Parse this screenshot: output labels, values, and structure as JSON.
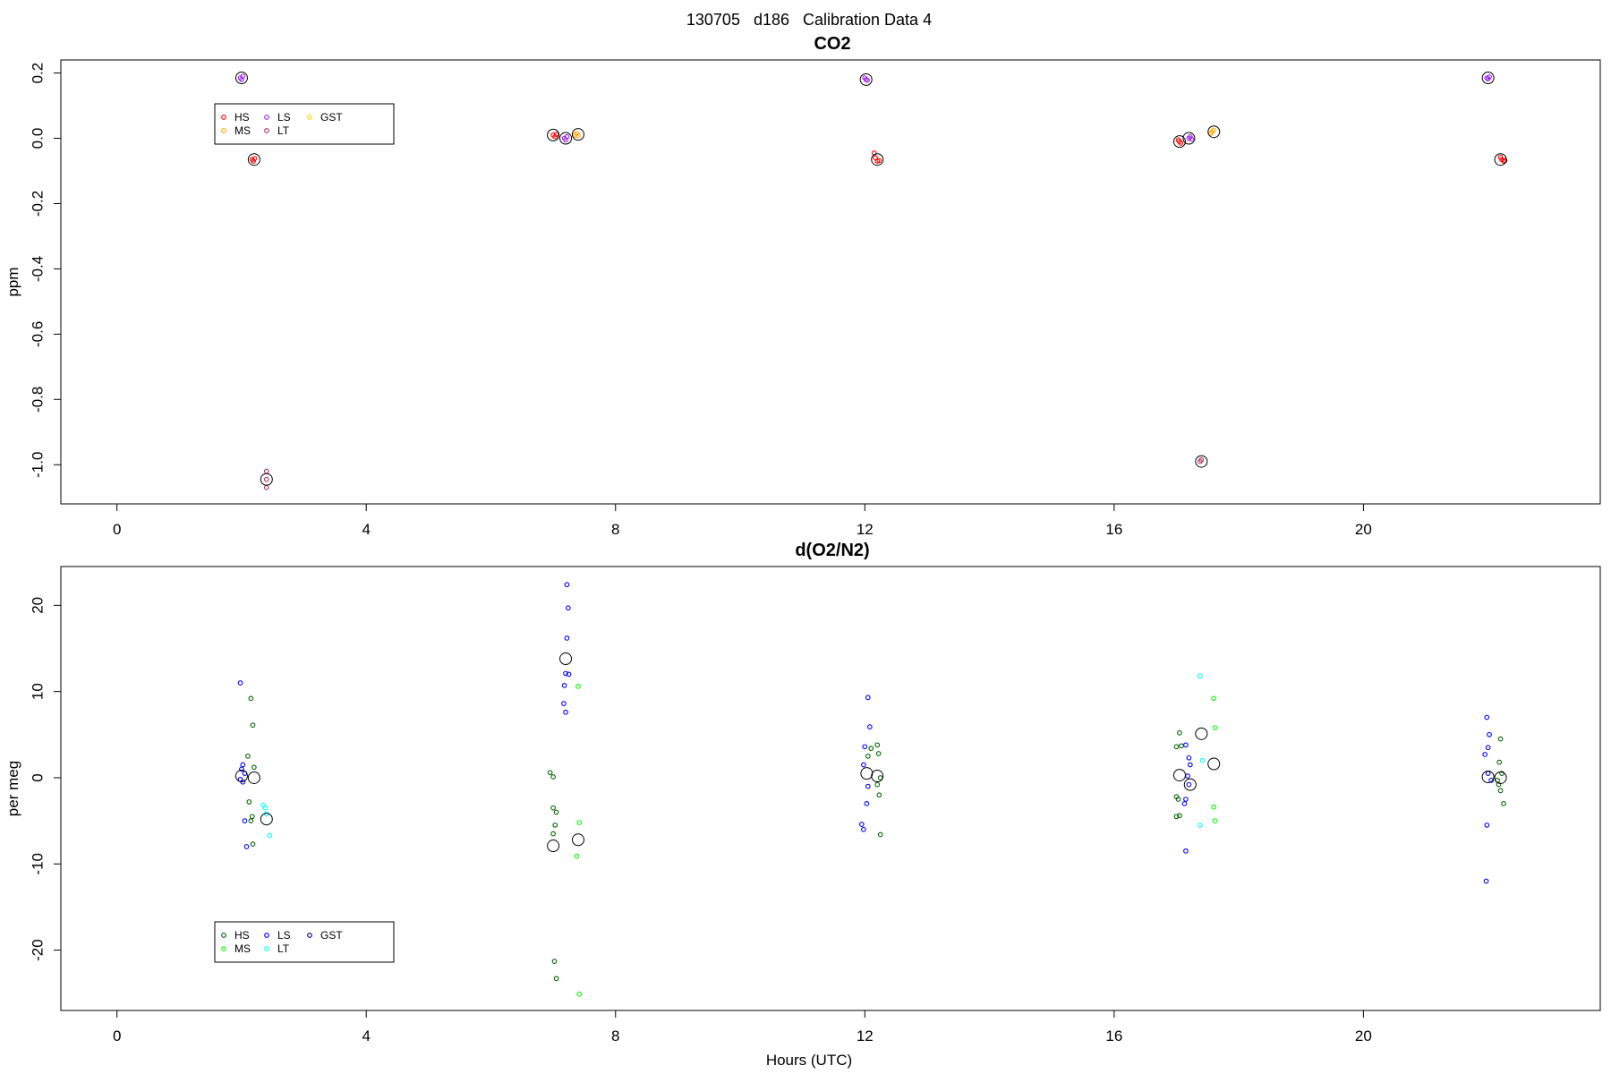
{
  "figure": {
    "title": "130705   d186   Calibration Data 4",
    "xlabel": "Hours (UTC)"
  },
  "chart_data": [
    {
      "type": "scatter",
      "title": "CO2",
      "xlabel": "",
      "ylabel": "ppm",
      "xlim": [
        -0.9,
        23.8
      ],
      "ylim": [
        -1.12,
        0.24
      ],
      "xticks": [
        0,
        4,
        8,
        12,
        16,
        20
      ],
      "yticks": [
        0.2,
        0.0,
        -0.2,
        -0.4,
        -0.6,
        -0.8,
        -1.0
      ],
      "ytick_labels": [
        "0.2",
        "0.0",
        "-0.2",
        "-0.4",
        "-0.6",
        "-0.8",
        "-1.0"
      ],
      "grid": false,
      "legend": {
        "placement": "top-left",
        "columns": [
          [
            "HS",
            "MS"
          ],
          [
            "LS",
            "LT"
          ],
          [
            "GST"
          ]
        ],
        "entries": [
          {
            "name": "HS",
            "color": "#ff0000",
            "col": 0,
            "row": 0
          },
          {
            "name": "MS",
            "color": "#ffa500",
            "col": 0,
            "row": 1
          },
          {
            "name": "LS",
            "color": "#a020f0",
            "col": 1,
            "row": 0
          },
          {
            "name": "LT",
            "color": "#b03060",
            "col": 1,
            "row": 1
          },
          {
            "name": "GST",
            "color": "#ffd700",
            "col": 2,
            "row": 0
          }
        ]
      },
      "series": [
        {
          "name": "HS",
          "color": "#ff0000",
          "points": [
            [
              2.17,
              -0.065
            ],
            [
              2.19,
              -0.07
            ],
            [
              2.21,
              -0.062
            ],
            [
              7.0,
              0.01
            ],
            [
              7.03,
              0.005
            ],
            [
              7.05,
              0.012
            ],
            [
              12.17,
              -0.06
            ],
            [
              12.2,
              -0.07
            ],
            [
              12.23,
              -0.068
            ],
            [
              12.15,
              -0.045
            ],
            [
              17.05,
              -0.01
            ],
            [
              17.07,
              -0.015
            ],
            [
              17.03,
              -0.005
            ],
            [
              22.22,
              -0.065
            ],
            [
              22.25,
              -0.07
            ],
            [
              22.27,
              -0.068
            ],
            [
              22.2,
              -0.058
            ]
          ]
        },
        {
          "name": "MS",
          "color": "#ffa500",
          "points": [
            [
              7.35,
              0.01
            ],
            [
              7.38,
              0.015
            ],
            [
              7.4,
              0.008
            ],
            [
              17.57,
              0.02
            ],
            [
              17.6,
              0.025
            ],
            [
              17.55,
              0.015
            ]
          ]
        },
        {
          "name": "LS",
          "color": "#a020f0",
          "points": [
            [
              1.98,
              0.185
            ],
            [
              2.0,
              0.18
            ],
            [
              2.02,
              0.19
            ],
            [
              7.18,
              0.0
            ],
            [
              7.2,
              -0.005
            ],
            [
              7.22,
              0.005
            ],
            [
              12.0,
              0.185
            ],
            [
              12.02,
              0.18
            ],
            [
              12.04,
              0.178
            ],
            [
              17.2,
              0.0
            ],
            [
              17.22,
              0.005
            ],
            [
              17.24,
              -0.002
            ],
            [
              21.98,
              0.185
            ],
            [
              22.0,
              0.182
            ],
            [
              22.02,
              0.188
            ]
          ]
        },
        {
          "name": "LT",
          "color": "#b03060",
          "points": [
            [
              2.4,
              -1.02
            ],
            [
              2.4,
              -1.045
            ],
            [
              2.4,
              -1.07
            ],
            [
              17.38,
              -0.99
            ],
            [
              17.4,
              -0.985
            ]
          ]
        },
        {
          "name": "GST",
          "color": "#ffd700",
          "points": []
        }
      ],
      "means": [
        [
          2.0,
          0.185
        ],
        [
          2.2,
          -0.065
        ],
        [
          2.4,
          -1.045
        ],
        [
          7.0,
          0.01
        ],
        [
          7.2,
          0.0
        ],
        [
          7.4,
          0.012
        ],
        [
          12.02,
          0.18
        ],
        [
          12.2,
          -0.065
        ],
        [
          17.05,
          -0.01
        ],
        [
          17.2,
          0.0
        ],
        [
          17.4,
          -0.99
        ],
        [
          17.6,
          0.02
        ],
        [
          22.0,
          0.185
        ],
        [
          22.2,
          -0.065
        ]
      ]
    },
    {
      "type": "scatter",
      "title": "d(O2/N2)",
      "xlabel": "Hours (UTC)",
      "ylabel": "per meg",
      "xlim": [
        -0.9,
        23.8
      ],
      "ylim": [
        -27.0,
        24.5
      ],
      "xticks": [
        0,
        4,
        8,
        12,
        16,
        20
      ],
      "yticks": [
        20,
        10,
        0,
        -10,
        -20
      ],
      "ytick_labels": [
        "20",
        "10",
        "0",
        "-10",
        "-20"
      ],
      "grid": false,
      "legend": {
        "placement": "bottom-left",
        "columns": [
          [
            "HS",
            "MS"
          ],
          [
            "LS",
            "LT"
          ],
          [
            "GST"
          ]
        ],
        "entries": [
          {
            "name": "HS",
            "color": "#006400",
            "col": 0,
            "row": 0
          },
          {
            "name": "MS",
            "color": "#00ff00",
            "col": 0,
            "row": 1
          },
          {
            "name": "LS",
            "color": "#0000ff",
            "col": 1,
            "row": 0
          },
          {
            "name": "LT",
            "color": "#00ffff",
            "col": 1,
            "row": 1
          },
          {
            "name": "GST",
            "color": "#00008b",
            "col": 2,
            "row": 0
          }
        ]
      },
      "series": [
        {
          "name": "HS",
          "color": "#006400",
          "points": [
            [
              2.15,
              9.2
            ],
            [
              2.18,
              6.1
            ],
            [
              2.1,
              2.5
            ],
            [
              2.2,
              1.2
            ],
            [
              2.12,
              -2.8
            ],
            [
              2.17,
              -4.5
            ],
            [
              2.15,
              -5.0
            ],
            [
              2.18,
              -7.7
            ],
            [
              6.95,
              0.6
            ],
            [
              7.0,
              0.1
            ],
            [
              7.0,
              -3.5
            ],
            [
              7.05,
              -4.0
            ],
            [
              7.03,
              -5.5
            ],
            [
              7.0,
              -6.5
            ],
            [
              7.02,
              -21.3
            ],
            [
              7.05,
              -23.3
            ],
            [
              12.05,
              2.5
            ],
            [
              12.1,
              3.4
            ],
            [
              12.2,
              3.8
            ],
            [
              12.22,
              2.8
            ],
            [
              12.25,
              0.0
            ],
            [
              12.2,
              -0.8
            ],
            [
              12.23,
              -2.0
            ],
            [
              12.25,
              -6.6
            ],
            [
              17.05,
              5.2
            ],
            [
              17.0,
              3.6
            ],
            [
              17.08,
              3.7
            ],
            [
              17.0,
              -2.2
            ],
            [
              17.03,
              -2.5
            ],
            [
              17.05,
              -4.4
            ],
            [
              17.0,
              -4.5
            ],
            [
              22.2,
              4.5
            ],
            [
              22.18,
              1.8
            ],
            [
              22.22,
              0.5
            ],
            [
              22.17,
              -0.8
            ],
            [
              22.2,
              -1.5
            ],
            [
              22.25,
              -3.0
            ],
            [
              22.15,
              -0.3
            ]
          ]
        },
        {
          "name": "MS",
          "color": "#00ff00",
          "points": [
            [
              7.4,
              10.6
            ],
            [
              7.42,
              -5.2
            ],
            [
              7.38,
              -9.1
            ],
            [
              7.42,
              -25.1
            ],
            [
              17.6,
              9.2
            ],
            [
              17.62,
              5.8
            ],
            [
              17.6,
              -3.4
            ],
            [
              17.62,
              -5.0
            ]
          ]
        },
        {
          "name": "LS",
          "color": "#0000ff",
          "points": [
            [
              1.98,
              11.0
            ],
            [
              2.02,
              1.5
            ],
            [
              2.0,
              1.0
            ],
            [
              2.05,
              0.5
            ],
            [
              1.98,
              -0.2
            ],
            [
              2.02,
              -0.5
            ],
            [
              2.05,
              -5.0
            ],
            [
              2.08,
              -8.0
            ],
            [
              7.22,
              22.4
            ],
            [
              7.24,
              19.7
            ],
            [
              7.22,
              16.2
            ],
            [
              7.2,
              12.1
            ],
            [
              7.25,
              12.0
            ],
            [
              7.18,
              10.7
            ],
            [
              7.17,
              8.6
            ],
            [
              7.2,
              7.6
            ],
            [
              12.05,
              9.3
            ],
            [
              12.08,
              5.9
            ],
            [
              12.0,
              3.6
            ],
            [
              11.98,
              1.5
            ],
            [
              12.05,
              -1.0
            ],
            [
              12.03,
              -3.0
            ],
            [
              11.95,
              -5.4
            ],
            [
              11.98,
              -6.0
            ],
            [
              17.15,
              3.8
            ],
            [
              17.2,
              2.3
            ],
            [
              17.22,
              1.5
            ],
            [
              17.18,
              0.2
            ],
            [
              17.2,
              -0.8
            ],
            [
              17.15,
              -2.5
            ],
            [
              17.13,
              -3.0
            ],
            [
              17.15,
              -8.5
            ],
            [
              21.98,
              7.0
            ],
            [
              22.02,
              5.0
            ],
            [
              22.0,
              3.5
            ],
            [
              21.95,
              2.7
            ],
            [
              22.0,
              0.5
            ],
            [
              22.05,
              -0.3
            ],
            [
              21.98,
              -5.5
            ],
            [
              21.97,
              -12.0
            ]
          ]
        },
        {
          "name": "LT",
          "color": "#00ffff",
          "points": [
            [
              2.35,
              -3.2
            ],
            [
              2.38,
              -3.5
            ],
            [
              2.4,
              -4.2
            ],
            [
              2.45,
              -6.7
            ],
            [
              17.38,
              11.8
            ],
            [
              17.42,
              2.0
            ],
            [
              17.38,
              -5.5
            ]
          ]
        },
        {
          "name": "GST",
          "color": "#00008b",
          "points": []
        }
      ],
      "means": [
        [
          2.0,
          0.2
        ],
        [
          2.2,
          0.0
        ],
        [
          2.4,
          -4.8
        ],
        [
          7.0,
          -7.9
        ],
        [
          7.2,
          13.8
        ],
        [
          7.4,
          -7.2
        ],
        [
          12.03,
          0.5
        ],
        [
          12.2,
          0.2
        ],
        [
          17.05,
          0.3
        ],
        [
          17.22,
          -0.8
        ],
        [
          17.4,
          5.1
        ],
        [
          17.6,
          1.6
        ],
        [
          22.0,
          0.1
        ],
        [
          22.2,
          0.0
        ]
      ]
    }
  ]
}
